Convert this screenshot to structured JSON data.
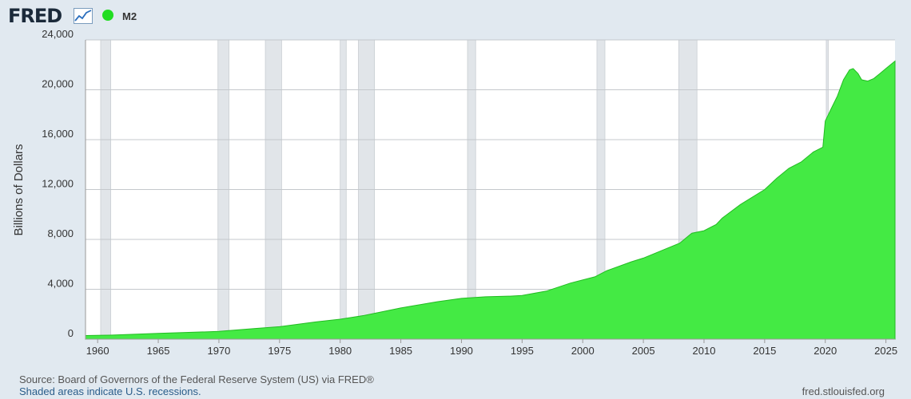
{
  "header": {
    "logo_text": "FRED",
    "logo_icon": "line-chart-icon",
    "series_label": "M2"
  },
  "footer": {
    "source": "Source: Board of Governors of the Federal Reserve System (US) via FRED®",
    "note": "Shaded areas indicate U.S. recessions.",
    "url": "fred.stlouisfed.org"
  },
  "colors": {
    "series_fill": "#44ea44",
    "series_line": "#22bb22",
    "recession": "#e1e5e9",
    "grid": "#c4c8cc",
    "plot_bg": "#ffffff",
    "page_bg": "#e1e9f0"
  },
  "chart_data": {
    "type": "area",
    "title": "",
    "xlabel": "",
    "ylabel": "Billions of Dollars",
    "xlim": [
      1959.0,
      2025.75
    ],
    "ylim": [
      0,
      24000
    ],
    "yticks": [
      0,
      4000,
      8000,
      12000,
      16000,
      20000,
      24000
    ],
    "ytick_labels": [
      "0",
      "4,000",
      "8,000",
      "12,000",
      "16,000",
      "20,000",
      "24,000"
    ],
    "xticks": [
      1960,
      1965,
      1970,
      1975,
      1980,
      1985,
      1990,
      1995,
      2000,
      2005,
      2010,
      2015,
      2020,
      2025
    ],
    "xtick_labels": [
      "1960",
      "1965",
      "1970",
      "1975",
      "1980",
      "1985",
      "1990",
      "1995",
      "2000",
      "2005",
      "2010",
      "2015",
      "2020",
      "2025"
    ],
    "grid": true,
    "recessions": [
      [
        1960.25,
        1961.08
      ],
      [
        1969.92,
        1970.83
      ],
      [
        1973.83,
        1975.17
      ],
      [
        1980.0,
        1980.5
      ],
      [
        1981.5,
        1982.83
      ],
      [
        1990.5,
        1991.17
      ],
      [
        2001.17,
        2001.83
      ],
      [
        2007.92,
        2009.42
      ],
      [
        2020.08,
        2020.25
      ]
    ],
    "series": [
      {
        "name": "M2",
        "x": [
          1959,
          1961,
          1965,
          1970,
          1973,
          1975,
          1978,
          1980,
          1982,
          1985,
          1988,
          1990,
          1992,
          1994,
          1995,
          1997,
          1999,
          2001,
          2002,
          2004,
          2005,
          2007,
          2008,
          2008.75,
          2009,
          2010,
          2011,
          2011.5,
          2013,
          2015,
          2016,
          2017,
          2018,
          2019,
          2019.8,
          2020,
          2020.25,
          2020.5,
          2021,
          2021.5,
          2022,
          2022.3,
          2022.7,
          2023,
          2023.5,
          2024,
          2024.5,
          2025,
          2025.75
        ],
        "y": [
          290,
          320,
          460,
          620,
          860,
          1000,
          1380,
          1600,
          1900,
          2500,
          3000,
          3270,
          3400,
          3450,
          3500,
          3850,
          4500,
          5000,
          5500,
          6200,
          6500,
          7300,
          7700,
          8300,
          8500,
          8700,
          9200,
          9700,
          10800,
          12000,
          12900,
          13700,
          14200,
          15000,
          15400,
          17500,
          18000,
          18500,
          19500,
          20800,
          21600,
          21700,
          21300,
          20800,
          20700,
          20900,
          21300,
          21700,
          22300
        ]
      }
    ]
  }
}
